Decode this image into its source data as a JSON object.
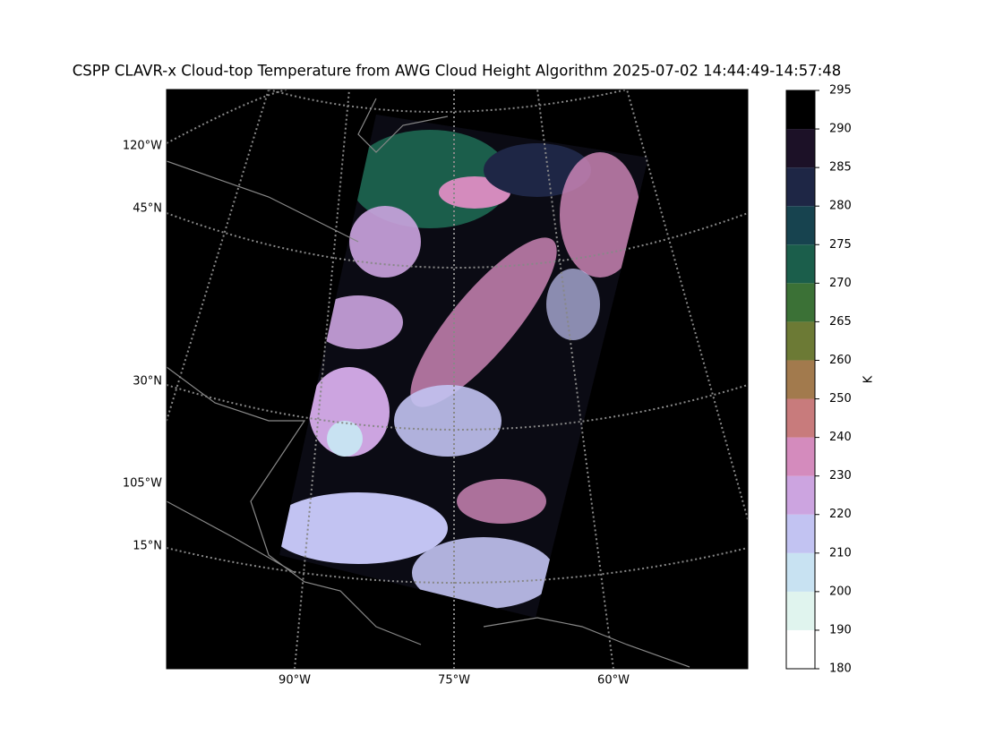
{
  "title": "CSPP CLAVR-x Cloud-top Temperature from AWG Cloud Height Algorithm 2025-07-02 14:44:49-14:57:48",
  "map": {
    "left_labels": [
      "120°W",
      "45°N",
      "30°N",
      "105°W",
      "15°N"
    ],
    "bottom_labels": [
      "90°W",
      "75°W",
      "60°W"
    ]
  },
  "colorbar": {
    "label": "K",
    "bounds": [
      180,
      190,
      200,
      210,
      220,
      230,
      240,
      250,
      260,
      265,
      270,
      275,
      280,
      285,
      290,
      295
    ],
    "colors": [
      "#ffffff",
      "#e0f4ee",
      "#c8e2f2",
      "#c2c3f2",
      "#cca4e0",
      "#d48bbd",
      "#c87b7c",
      "#a27a4d",
      "#6c7a35",
      "#3b7136",
      "#1b5e4b",
      "#17434f",
      "#1e2645",
      "#1c1127",
      "#000000"
    ]
  }
}
